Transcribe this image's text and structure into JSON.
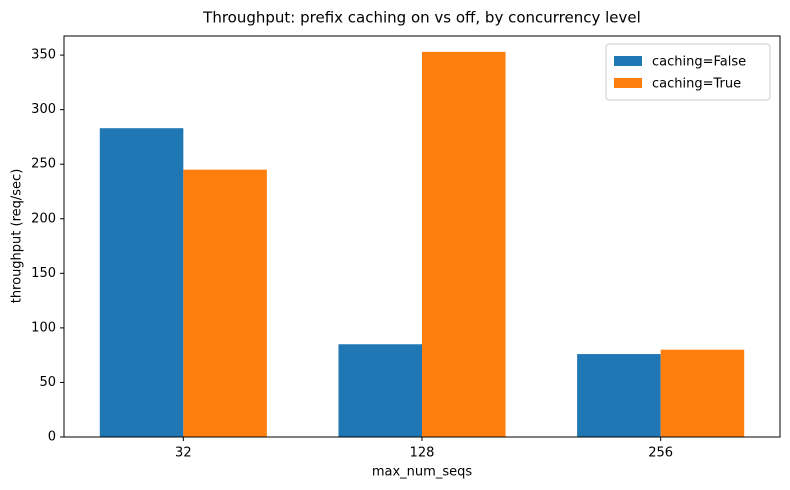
{
  "chart_data": {
    "type": "bar",
    "title": "Throughput: prefix caching on vs off, by concurrency level",
    "x_label": "max_num_seqs",
    "y_label": "throughput (req/sec)",
    "categories": [
      "32",
      "128",
      "256"
    ],
    "series": [
      {
        "name": "caching=False",
        "color": "#1f77b4",
        "values": [
          283,
          85,
          76
        ]
      },
      {
        "name": "caching=True",
        "color": "#ff7f0e",
        "values": [
          245,
          353,
          80
        ]
      }
    ],
    "ylim": [
      0,
      367.5
    ],
    "yticks": [
      0,
      50,
      100,
      150,
      200,
      250,
      300,
      350
    ],
    "legend": "upper right"
  }
}
